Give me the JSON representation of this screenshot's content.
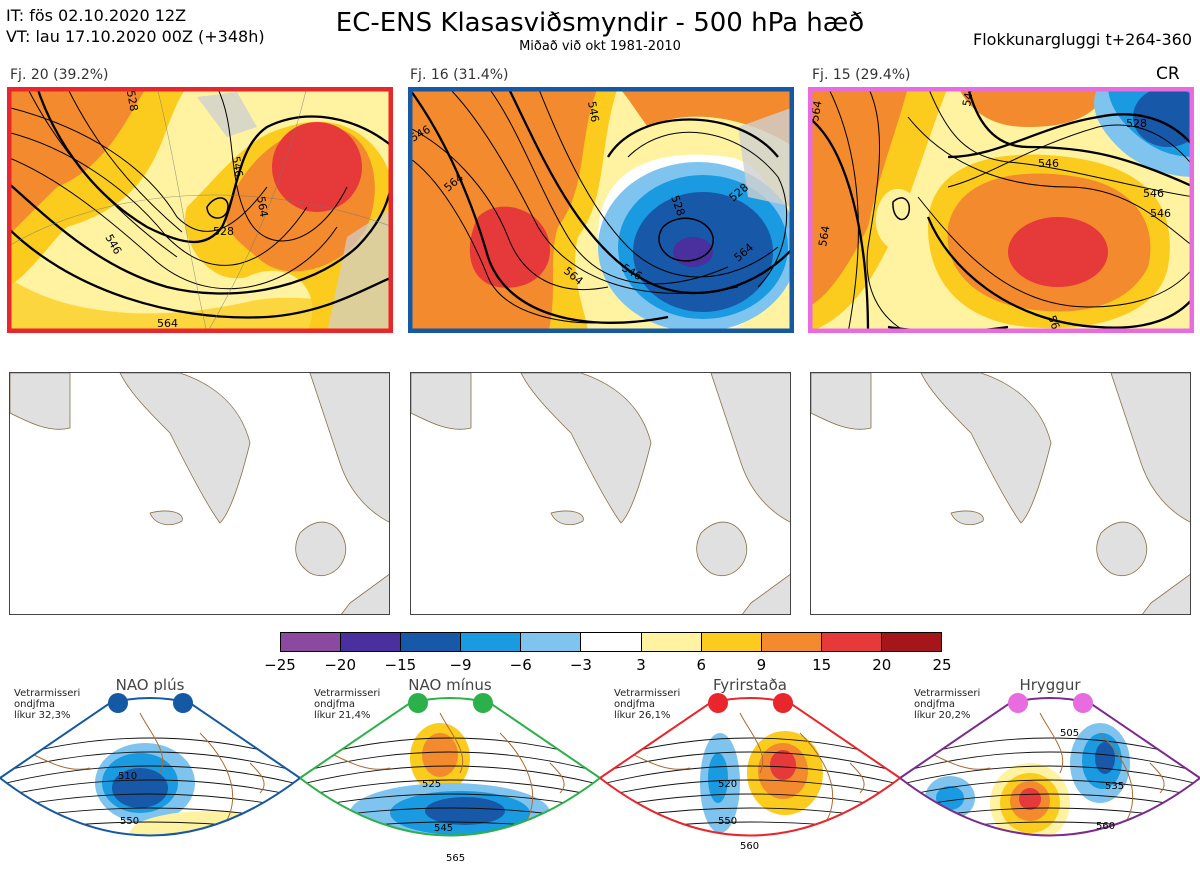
{
  "header": {
    "it_line": "IT: fös 02.10.2020 12Z",
    "vt_line": "VT: lau 17.10.2020 00Z  (+348h)",
    "title": "EC-ENS Klasasviðsmyndir - 500 hPa hæð",
    "subtitle": "Miðað við okt 1981-2010",
    "window": "Flokkunargluggi t+264-360"
  },
  "clusters": [
    {
      "label": "Fj. 20 (39.2%)",
      "border_color": "#e8262b",
      "contours": [
        "564",
        "546",
        "528",
        "564",
        "546",
        "528",
        "564"
      ]
    },
    {
      "label": "Fj. 16 (31.4%)",
      "border_color": "#1559a5",
      "contours": [
        "546",
        "564",
        "528",
        "546",
        "564",
        "546",
        "564",
        "528"
      ]
    },
    {
      "label": "Fj. 15 (29.4%)",
      "border_color": "#e86be0",
      "contours": [
        "564",
        "546",
        "528",
        "546",
        "564",
        "546",
        "564",
        "546"
      ],
      "tag": "CR"
    }
  ],
  "colorbar": {
    "ticks": [
      "−25",
      "−20",
      "−15",
      "−9",
      "−6",
      "−3",
      "3",
      "6",
      "9",
      "15",
      "20",
      "25"
    ],
    "colors": [
      "#8b4aa0",
      "#4a2f9e",
      "#1858a8",
      "#1a9ae0",
      "#7fc4ee",
      "#ffffff",
      "#fff3a1",
      "#fbcc1e",
      "#f38a2d",
      "#e6393a",
      "#a4161a"
    ]
  },
  "regimes": [
    {
      "title": "NAO plús",
      "stats": [
        "Vetrarmisseri",
        "ondjfma",
        "líkur 32,3%"
      ],
      "dot_color": "#1559a5",
      "border_color": "#1559a5",
      "labels": [
        "510",
        "550"
      ]
    },
    {
      "title": "NAO mínus",
      "stats": [
        "Vetrarmisseri",
        "ondjfma",
        "líkur 21,4%"
      ],
      "dot_color": "#2cb14a",
      "border_color": "#2cb14a",
      "labels": [
        "525",
        "545",
        "565"
      ]
    },
    {
      "title": "Fyrirstaða",
      "stats": [
        "Vetrarmisseri",
        "ondjfma",
        "líkur 26,1%"
      ],
      "dot_color": "#e8262b",
      "border_color": "#e8262b",
      "labels": [
        "520",
        "550",
        "560"
      ]
    },
    {
      "title": "Hryggur",
      "stats": [
        "Vetrarmisseri",
        "ondjfma",
        "líkur 20,2%"
      ],
      "dot_color": "#e86be0",
      "border_color": "#7b2a8e",
      "labels": [
        "505",
        "535",
        "560"
      ]
    }
  ]
}
